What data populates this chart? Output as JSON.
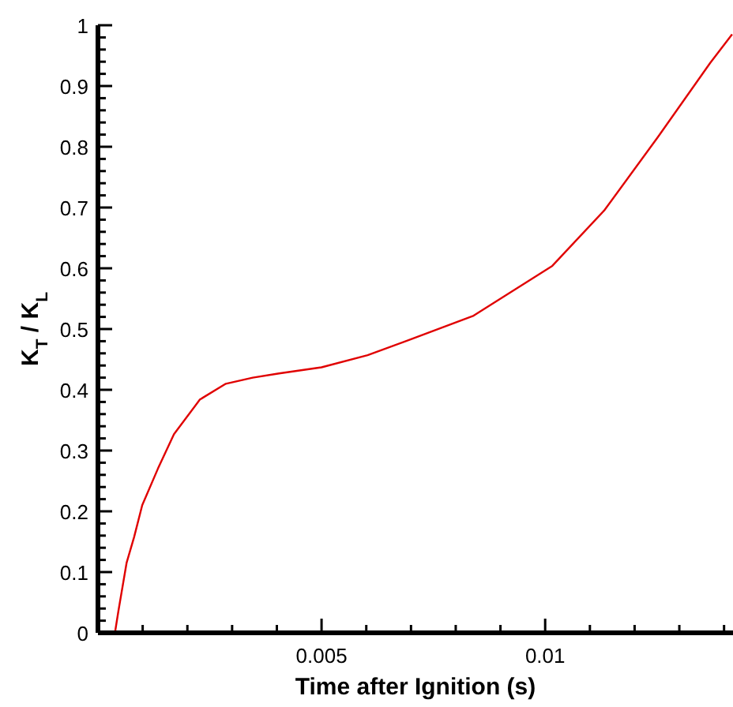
{
  "chart_data": {
    "type": "line",
    "xlabel": "Time after Ignition (s)",
    "ylabel": "K$_{T}$ / K$_{L}$",
    "xlim": [
      0,
      0.0142
    ],
    "xticks": [
      {
        "value": 0.001,
        "label": null
      },
      {
        "value": 0.002,
        "label": null
      },
      {
        "value": 0.003,
        "label": null
      },
      {
        "value": 0.004,
        "label": null
      },
      0.005,
      {
        "value": 0.006,
        "label": null
      },
      {
        "value": 0.007,
        "label": null
      },
      {
        "value": 0.008,
        "label": null
      },
      {
        "value": 0.009,
        "label": null
      },
      0.01,
      {
        "value": 0.011,
        "label": null
      },
      {
        "value": 0.012,
        "label": null
      },
      {
        "value": 0.013,
        "label": null
      },
      {
        "value": 0.014,
        "label": null
      }
    ],
    "ylim": [
      0,
      1
    ],
    "yticks": [
      0,
      0.1,
      0.2,
      0.3,
      0.4,
      0.5,
      0.6,
      0.7,
      0.8,
      0.9,
      1
    ],
    "marker": "none",
    "line_style": "solid",
    "grid": false,
    "series": [
      {
        "color": "#e00000",
        "x": [
          0.00038,
          0.00046,
          0.00064,
          0.00081,
          0.00099,
          0.00134,
          0.0017,
          0.00228,
          0.00286,
          0.00346,
          0.00405,
          0.005,
          0.00603,
          0.00699,
          0.0084,
          0.01016,
          0.01133,
          0.01252,
          0.01369,
          0.01418
        ],
        "values": [
          0,
          0.037,
          0.115,
          0.158,
          0.21,
          0.27,
          0.327,
          0.384,
          0.41,
          0.42,
          0.427,
          0.437,
          0.457,
          0.483,
          0.522,
          0.604,
          0.696,
          0.816,
          0.938,
          0.985
        ]
      }
    ]
  }
}
